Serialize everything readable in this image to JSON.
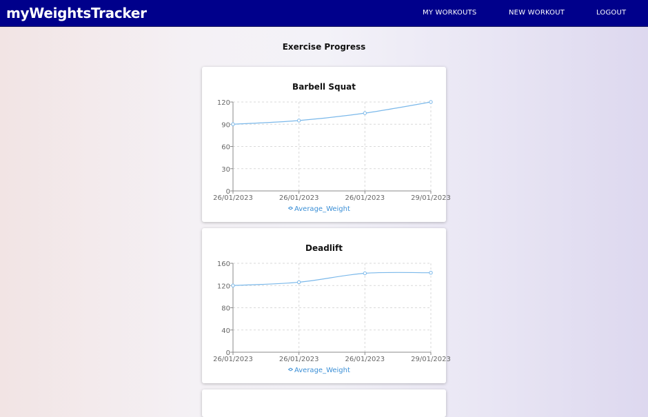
{
  "navbar": {
    "brand": "myWeightsTracker",
    "links": [
      "MY WORKOUTS",
      "NEW WORKOUT",
      "LOGOUT"
    ]
  },
  "page": {
    "title": "Exercise Progress"
  },
  "colors": {
    "navbar": "#00008b",
    "line": "#7ab8ea",
    "legend": "#3b8fd6"
  },
  "chart_data": [
    {
      "type": "line",
      "title": "Barbell Squat",
      "categories": [
        "26/01/2023",
        "26/01/2023",
        "26/01/2023",
        "29/01/2023"
      ],
      "series": [
        {
          "name": "Average_Weight",
          "values": [
            90,
            95,
            105,
            120
          ]
        }
      ],
      "ylim": [
        0,
        120
      ],
      "yticks": [
        0,
        30,
        60,
        90,
        120
      ],
      "grid": true,
      "legend": "bottom"
    },
    {
      "type": "line",
      "title": "Deadlift",
      "categories": [
        "26/01/2023",
        "26/01/2023",
        "26/01/2023",
        "29/01/2023"
      ],
      "series": [
        {
          "name": "Average_Weight",
          "values": [
            120,
            126,
            142,
            143
          ]
        }
      ],
      "ylim": [
        0,
        160
      ],
      "yticks": [
        0,
        40,
        80,
        120,
        160
      ],
      "grid": true,
      "legend": "bottom"
    }
  ]
}
